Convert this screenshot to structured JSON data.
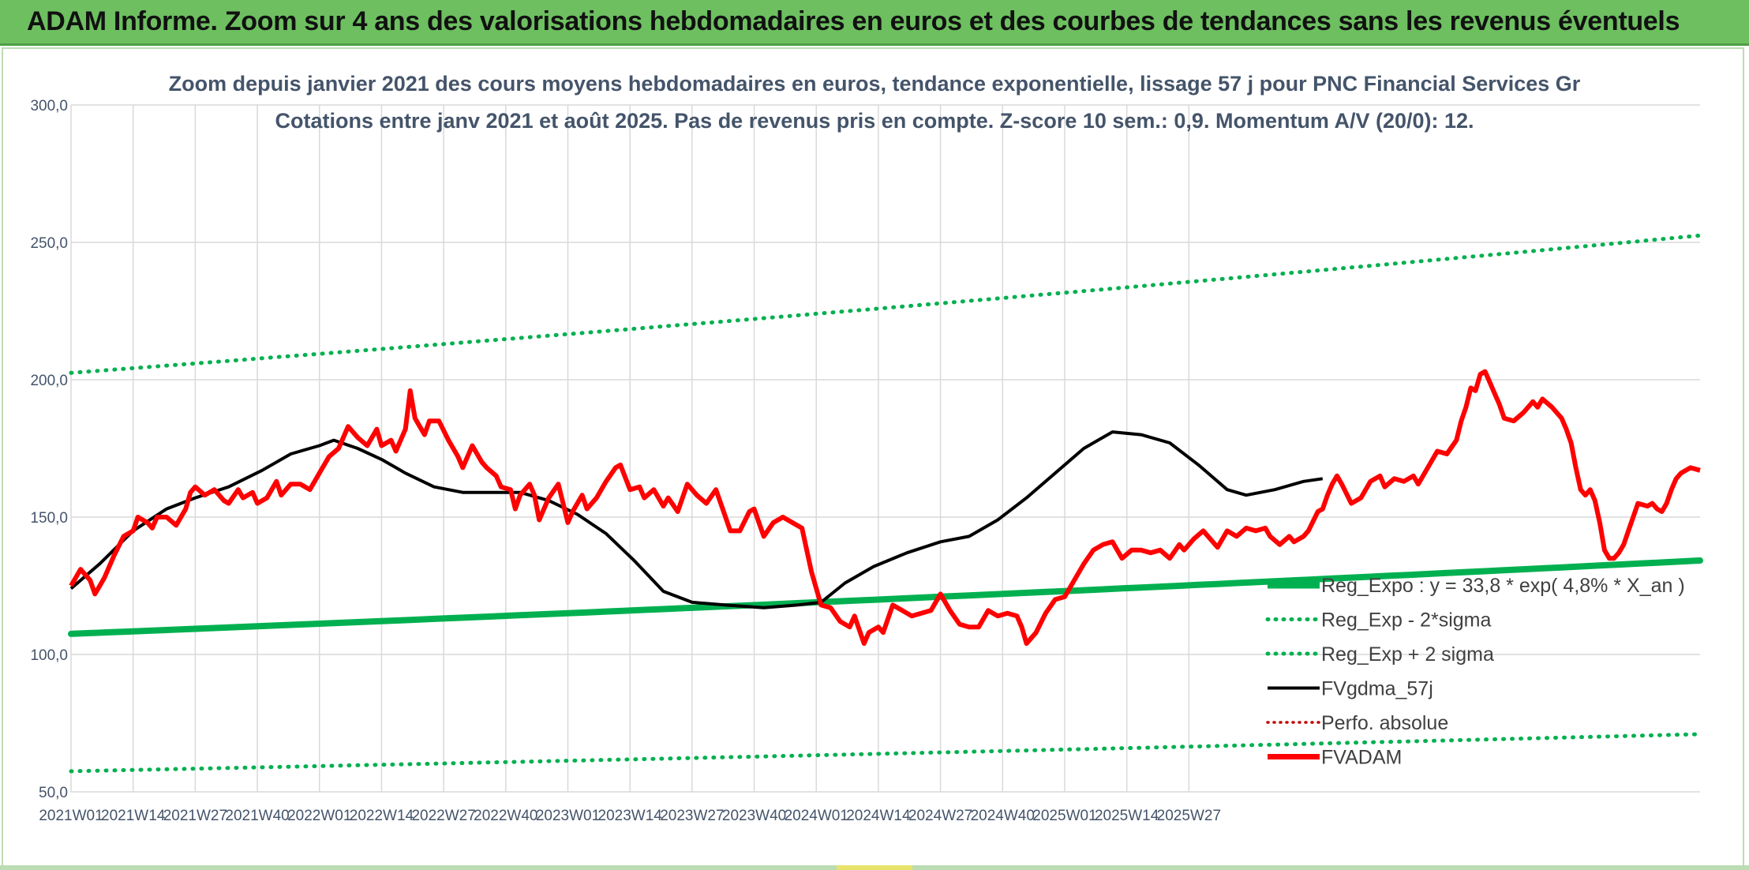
{
  "banner": {
    "title": "ADAM Informe. Zoom sur 4 ans des valorisations hebdomadaires en euros et des courbes de tendances sans les revenus éventuels"
  },
  "colors": {
    "banner": "#6dbf60",
    "trend": "#00b050",
    "smooth": "#000000",
    "price": "#ff0000",
    "perf": "#c00000"
  },
  "chart_data": {
    "type": "line",
    "title_line1": "Zoom depuis janvier 2021 des cours moyens hebdomadaires en euros, tendance exponentielle, lissage 57 j pour PNC Financial Services Gr",
    "title_line2": "Cotations entre janv 2021 et août 2025. Pas de revenus pris en compte. Z-score 10 sem.: 0,9. Momentum A/V (20/0): 12.",
    "ylim": [
      50,
      300
    ],
    "y_ticks": [
      "50,0",
      "100,0",
      "150,0",
      "200,0",
      "250,0",
      "300,0"
    ],
    "x_ticks": [
      "2021W01",
      "2021W14",
      "2021W27",
      "2021W40",
      "2022W01",
      "2022W14",
      "2022W27",
      "2022W40",
      "2023W01",
      "2023W14",
      "2023W27",
      "2023W40",
      "2024W01",
      "2024W14",
      "2024W27",
      "2024W40",
      "2025W01",
      "2025W14",
      "2025W27"
    ],
    "grid": true,
    "legend_position": "right",
    "series": [
      {
        "name": "Reg_Expo : y = 33,8 * exp( 4,8% *  X_an )",
        "start": 107.5,
        "end": 134.2
      },
      {
        "name": "Reg_Exp - 2*sigma",
        "start": 57.5,
        "end": 71.0
      },
      {
        "name": "Reg_Exp + 2 sigma",
        "start": 202.5,
        "end": 252.5
      },
      {
        "name": "FVgdma_57j",
        "points": [
          [
            0,
            124
          ],
          [
            6,
            133
          ],
          [
            13,
            145
          ],
          [
            20,
            153
          ],
          [
            26,
            157
          ],
          [
            33,
            161
          ],
          [
            40,
            167
          ],
          [
            46,
            173
          ],
          [
            52,
            176
          ],
          [
            55,
            178
          ],
          [
            60,
            175
          ],
          [
            65,
            171
          ],
          [
            70,
            166
          ],
          [
            76,
            161
          ],
          [
            82,
            159
          ],
          [
            88,
            159
          ],
          [
            94,
            159
          ],
          [
            100,
            156
          ],
          [
            106,
            151
          ],
          [
            112,
            144
          ],
          [
            118,
            134
          ],
          [
            124,
            123
          ],
          [
            130,
            119
          ],
          [
            137,
            118
          ],
          [
            145,
            117
          ],
          [
            152,
            118
          ],
          [
            157,
            119
          ],
          [
            162,
            126
          ],
          [
            168,
            132
          ],
          [
            175,
            137
          ],
          [
            182,
            141
          ],
          [
            188,
            143
          ],
          [
            194,
            149
          ],
          [
            200,
            157
          ],
          [
            206,
            166
          ],
          [
            212,
            175
          ],
          [
            218,
            181
          ],
          [
            224,
            180
          ],
          [
            230,
            177
          ],
          [
            236,
            169
          ],
          [
            242,
            160
          ],
          [
            246,
            158
          ],
          [
            252,
            160
          ],
          [
            258,
            163
          ],
          [
            262,
            164
          ]
        ]
      },
      {
        "name": "Perfo. absolue",
        "points": []
      },
      {
        "name": "FVADAM",
        "points": [
          [
            0,
            125
          ],
          [
            2,
            131
          ],
          [
            4,
            127
          ],
          [
            5,
            122
          ],
          [
            7,
            128
          ],
          [
            9,
            136
          ],
          [
            11,
            143
          ],
          [
            13,
            145
          ],
          [
            14,
            150
          ],
          [
            16,
            148
          ],
          [
            17,
            146
          ],
          [
            18,
            150
          ],
          [
            20,
            150
          ],
          [
            22,
            147
          ],
          [
            24,
            153
          ],
          [
            25,
            159
          ],
          [
            26,
            161
          ],
          [
            28,
            158
          ],
          [
            30,
            160
          ],
          [
            32,
            156
          ],
          [
            33,
            155
          ],
          [
            35,
            160
          ],
          [
            36,
            157
          ],
          [
            38,
            159
          ],
          [
            39,
            155
          ],
          [
            41,
            157
          ],
          [
            43,
            163
          ],
          [
            44,
            158
          ],
          [
            46,
            162
          ],
          [
            48,
            162
          ],
          [
            50,
            160
          ],
          [
            52,
            166
          ],
          [
            54,
            172
          ],
          [
            56,
            175
          ],
          [
            58,
            183
          ],
          [
            60,
            179
          ],
          [
            62,
            176
          ],
          [
            64,
            182
          ],
          [
            65,
            176
          ],
          [
            67,
            178
          ],
          [
            68,
            174
          ],
          [
            70,
            182
          ],
          [
            71,
            196
          ],
          [
            72,
            186
          ],
          [
            74,
            180
          ],
          [
            75,
            185
          ],
          [
            77,
            185
          ],
          [
            79,
            178
          ],
          [
            81,
            172
          ],
          [
            82,
            168
          ],
          [
            84,
            176
          ],
          [
            86,
            170
          ],
          [
            87,
            168
          ],
          [
            89,
            165
          ],
          [
            90,
            161
          ],
          [
            92,
            160
          ],
          [
            93,
            153
          ],
          [
            94,
            158
          ],
          [
            96,
            162
          ],
          [
            97,
            158
          ],
          [
            98,
            149
          ],
          [
            100,
            157
          ],
          [
            102,
            162
          ],
          [
            104,
            148
          ],
          [
            105,
            152
          ],
          [
            107,
            158
          ],
          [
            108,
            153
          ],
          [
            110,
            157
          ],
          [
            112,
            163
          ],
          [
            114,
            168
          ],
          [
            115,
            169
          ],
          [
            117,
            160
          ],
          [
            119,
            161
          ],
          [
            120,
            157
          ],
          [
            122,
            160
          ],
          [
            124,
            154
          ],
          [
            125,
            157
          ],
          [
            127,
            152
          ],
          [
            129,
            162
          ],
          [
            131,
            158
          ],
          [
            133,
            155
          ],
          [
            135,
            160
          ],
          [
            136,
            155
          ],
          [
            138,
            145
          ],
          [
            140,
            145
          ],
          [
            142,
            152
          ],
          [
            143,
            153
          ],
          [
            145,
            143
          ],
          [
            147,
            148
          ],
          [
            149,
            150
          ],
          [
            151,
            148
          ],
          [
            153,
            146
          ],
          [
            155,
            130
          ],
          [
            157,
            118
          ],
          [
            159,
            117
          ],
          [
            161,
            112
          ],
          [
            163,
            110
          ],
          [
            164,
            114
          ],
          [
            166,
            104
          ],
          [
            167,
            108
          ],
          [
            169,
            110
          ],
          [
            170,
            108
          ],
          [
            172,
            118
          ],
          [
            174,
            116
          ],
          [
            176,
            114
          ],
          [
            178,
            115
          ],
          [
            180,
            116
          ],
          [
            182,
            122
          ],
          [
            184,
            116
          ],
          [
            186,
            111
          ],
          [
            188,
            110
          ],
          [
            190,
            110
          ],
          [
            192,
            116
          ],
          [
            194,
            114
          ],
          [
            196,
            115
          ],
          [
            198,
            114
          ],
          [
            199,
            110
          ],
          [
            200,
            104
          ],
          [
            202,
            108
          ],
          [
            204,
            115
          ],
          [
            206,
            120
          ],
          [
            208,
            121
          ],
          [
            210,
            127
          ],
          [
            212,
            133
          ],
          [
            214,
            138
          ],
          [
            216,
            140
          ],
          [
            218,
            141
          ],
          [
            220,
            135
          ],
          [
            222,
            138
          ],
          [
            224,
            138
          ],
          [
            226,
            137
          ],
          [
            228,
            138
          ],
          [
            230,
            135
          ],
          [
            232,
            140
          ],
          [
            233,
            138
          ],
          [
            235,
            142
          ],
          [
            237,
            145
          ],
          [
            238,
            143
          ],
          [
            240,
            139
          ],
          [
            242,
            145
          ],
          [
            244,
            143
          ],
          [
            246,
            146
          ],
          [
            248,
            145
          ],
          [
            250,
            146
          ],
          [
            251,
            143
          ],
          [
            253,
            140
          ],
          [
            255,
            143
          ],
          [
            256,
            141
          ],
          [
            258,
            143
          ],
          [
            259,
            145
          ],
          [
            261,
            152
          ],
          [
            262,
            153
          ],
          [
            263,
            158
          ],
          [
            264,
            162
          ],
          [
            265,
            165
          ],
          [
            266,
            162
          ],
          [
            268,
            155
          ],
          [
            270,
            157
          ],
          [
            272,
            163
          ],
          [
            274,
            165
          ],
          [
            275,
            161
          ],
          [
            277,
            164
          ],
          [
            279,
            163
          ],
          [
            281,
            165
          ],
          [
            282,
            162
          ],
          [
            284,
            168
          ],
          [
            286,
            174
          ],
          [
            288,
            173
          ],
          [
            290,
            178
          ],
          [
            291,
            185
          ],
          [
            292,
            190
          ],
          [
            293,
            197
          ],
          [
            294,
            196
          ],
          [
            295,
            202
          ],
          [
            296,
            203
          ],
          [
            297,
            199
          ],
          [
            298,
            195
          ],
          [
            299,
            191
          ],
          [
            300,
            186
          ],
          [
            302,
            185
          ],
          [
            304,
            188
          ],
          [
            306,
            192
          ],
          [
            307,
            190
          ],
          [
            308,
            193
          ],
          [
            310,
            190
          ],
          [
            312,
            186
          ],
          [
            313,
            182
          ],
          [
            314,
            177
          ],
          [
            315,
            168
          ],
          [
            316,
            160
          ],
          [
            317,
            158
          ],
          [
            318,
            160
          ],
          [
            319,
            156
          ],
          [
            320,
            148
          ],
          [
            321,
            138
          ],
          [
            322,
            135
          ],
          [
            323,
            135
          ],
          [
            324,
            137
          ],
          [
            325,
            140
          ],
          [
            326,
            145
          ],
          [
            328,
            155
          ],
          [
            330,
            154
          ],
          [
            331,
            155
          ],
          [
            332,
            153
          ],
          [
            333,
            152
          ],
          [
            334,
            155
          ],
          [
            335,
            160
          ],
          [
            336,
            164
          ],
          [
            337,
            166
          ],
          [
            339,
            168
          ],
          [
            341,
            167
          ]
        ]
      }
    ]
  }
}
